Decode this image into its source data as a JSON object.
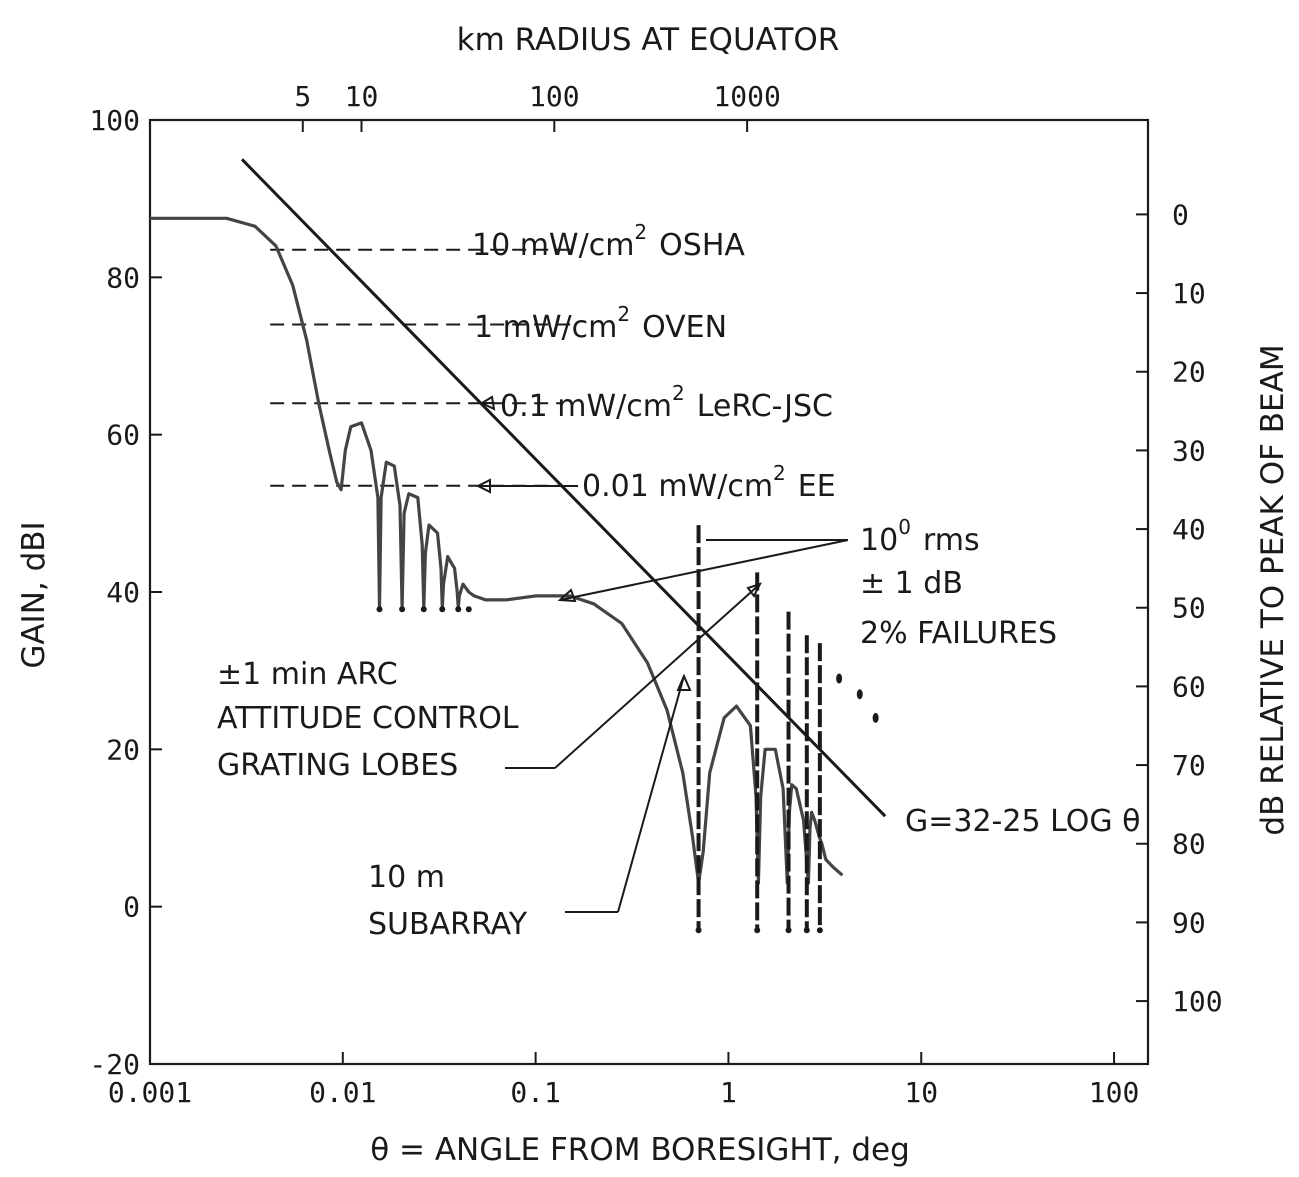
{
  "chart_data": {
    "type": "line",
    "title": "km RADIUS AT EQUATOR",
    "xlabel": "θ = ANGLE FROM BORESIGHT, deg",
    "ylabel": "GAIN, dBI",
    "y2label": "dB RELATIVE TO PEAK OF BEAM",
    "xscale": "log",
    "xlim": [
      0.001,
      150
    ],
    "ylim": [
      -20,
      100
    ],
    "grid": false,
    "x_ticks": [
      {
        "value": 0.001,
        "label": "0.001"
      },
      {
        "value": 0.01,
        "label": "0.01"
      },
      {
        "value": 0.1,
        "label": "0.1"
      },
      {
        "value": 1,
        "label": "1"
      },
      {
        "value": 10,
        "label": "10"
      },
      {
        "value": 100,
        "label": "100"
      }
    ],
    "y_ticks": [
      {
        "value": 100,
        "label": "100"
      },
      {
        "value": 80,
        "label": "80"
      },
      {
        "value": 60,
        "label": "60"
      },
      {
        "value": 40,
        "label": "40"
      },
      {
        "value": 20,
        "label": "20"
      },
      {
        "value": 0,
        "label": "0"
      },
      {
        "value": -20,
        "label": "-20"
      }
    ],
    "y2_ticks": [
      {
        "value": 88,
        "label": "0"
      },
      {
        "value": 78,
        "label": "10"
      },
      {
        "value": 68,
        "label": "20"
      },
      {
        "value": 58,
        "label": "30"
      },
      {
        "value": 48,
        "label": "40"
      },
      {
        "value": 38,
        "label": "50"
      },
      {
        "value": 28,
        "label": "60"
      },
      {
        "value": 18,
        "label": "70"
      },
      {
        "value": 8,
        "label": "80"
      },
      {
        "value": -2,
        "label": "90"
      },
      {
        "value": -12,
        "label": "100"
      }
    ],
    "top_ticks": [
      {
        "value": 0.0062,
        "label": "5"
      },
      {
        "value": 0.0125,
        "label": "10"
      },
      {
        "value": 0.125,
        "label": "100"
      },
      {
        "value": 1.25,
        "label": "1000"
      }
    ],
    "series": [
      {
        "name": "",
        "x": [
          0.001,
          0.0025,
          0.0035,
          0.0045,
          0.0055,
          0.0065,
          0.0075,
          0.0085,
          0.0093,
          0.0098,
          0.01,
          0.0103,
          0.011,
          0.0125,
          0.014,
          0.0152,
          0.0155,
          0.0158,
          0.0168,
          0.0185,
          0.0198,
          0.0203,
          0.0208,
          0.022,
          0.0245,
          0.0258,
          0.0263,
          0.0268,
          0.028,
          0.031,
          0.0323,
          0.0328,
          0.0333,
          0.035,
          0.038,
          0.0392,
          0.0397,
          0.0402,
          0.042,
          0.045,
          0.048,
          0.055,
          0.07,
          0.1,
          0.15,
          0.2,
          0.28,
          0.38,
          0.48,
          0.58,
          0.65,
          0.7,
          0.74,
          0.8,
          0.95,
          1.1,
          1.3,
          1.39,
          1.43,
          1.47,
          1.55,
          1.75,
          1.92,
          2.02,
          2.07,
          2.13,
          2.25,
          2.45,
          2.6,
          2.65,
          2.7,
          2.8,
          2.95,
          3.05,
          3.2,
          3.5,
          3.9
        ],
        "y": [
          87.5,
          87.5,
          86.5,
          84,
          79,
          72,
          64,
          58,
          54,
          53,
          55,
          58,
          61,
          61.5,
          58,
          52,
          38,
          52,
          56.5,
          56,
          51,
          38,
          50,
          52.5,
          52,
          46,
          38,
          45,
          48.5,
          47.5,
          43,
          38,
          41,
          44.5,
          43,
          40,
          38,
          39.5,
          41,
          40,
          39.5,
          39,
          39,
          39.5,
          39.5,
          38.5,
          36,
          31,
          25,
          17,
          9,
          3,
          7,
          17,
          24,
          25.5,
          23,
          14,
          3,
          14,
          20,
          20,
          15,
          3,
          12,
          15.5,
          15,
          11,
          3,
          10,
          12,
          11,
          9,
          8,
          6,
          5,
          4
        ]
      },
      {
        "name": "",
        "x": [
          0.003,
          6.5
        ],
        "y": [
          95,
          11.5
        ]
      }
    ],
    "grating_lobes": [
      {
        "x": 0.7,
        "y": 48.5
      },
      {
        "x": 1.41,
        "y": 42.5
      },
      {
        "x": 2.05,
        "y": 37.5
      },
      {
        "x": 2.55,
        "y": 34.5
      },
      {
        "x": 2.98,
        "y": 33.5
      }
    ],
    "grating_lobe_base": -3,
    "scatter_points": [
      {
        "x": 3.75,
        "y": 29
      },
      {
        "x": 4.8,
        "y": 27
      },
      {
        "x": 5.8,
        "y": 24
      }
    ],
    "reference_lines": [
      {
        "y": 83.5,
        "x_from": 0.0042,
        "x_to": 0.0125,
        "label": "10 mW/cm² OSHA"
      },
      {
        "y": 74,
        "x_from": 0.0042,
        "x_to": 0.0125,
        "label": "1 mW/cm² OVEN"
      },
      {
        "y": 64,
        "x_from": 0.0042,
        "x_to": 0.011,
        "label": "0.1 mW/cm² LeRC-JSC"
      },
      {
        "y": 53.5,
        "x_from": 0.0042,
        "x_to": 0.011,
        "label": "0.01 mW/cm² EE"
      }
    ],
    "annotations": [
      "10 mW/cm2 OSHA",
      "1 mW/cm2 OVEN",
      "0.1 mW/cm2 LeRC-JSC",
      "0.01 mW/cm2 EE",
      "10° rms",
      "± 1 dB",
      "2% FAILURES",
      "±1 min ARC",
      "ATTITUDE CONTROL",
      "GRATING LOBES",
      "10 m",
      "SUBARRAY",
      "G=32-25 LOG θ"
    ],
    "legend": "none"
  },
  "labels": {
    "osha_prefix": "10 mW/cm",
    "oven_prefix": "1 mW/cm",
    "lerc_prefix": "0.1 mW/cm",
    "ee_prefix": "0.01 mW/cm",
    "sq_exp": "2",
    "osha_suffix": "OSHA",
    "oven_suffix": "OVEN",
    "lerc_suffix": "LeRC-JSC",
    "ee_suffix": "EE",
    "rms_base": "10",
    "rms_exp": "0",
    "rms_suffix": "rms",
    "pm_db": "± 1 dB",
    "failures": "2% FAILURES",
    "arc": "±1 min ARC",
    "attitude": "ATTITUDE CONTROL",
    "grating": "GRATING LOBES",
    "subarray_1": "10 m",
    "subarray_2": "SUBARRAY",
    "formula": "G=32-25 LOG θ"
  }
}
